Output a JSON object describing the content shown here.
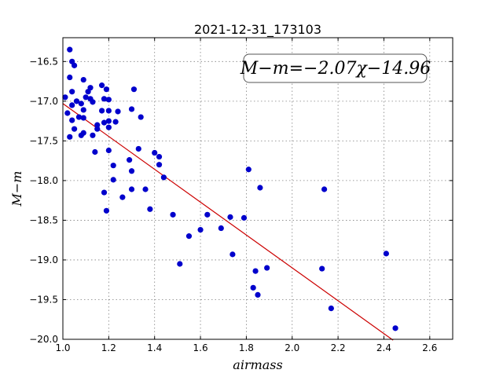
{
  "chart_data": {
    "type": "scatter",
    "title": "2021-12-31_173103",
    "xlabel": "airmass",
    "ylabel": "M−m",
    "xlim": [
      1.0,
      2.7
    ],
    "ylim": [
      -20.0,
      -16.2
    ],
    "y_inverted": true,
    "grid": true,
    "x_ticks": [
      1.0,
      1.2,
      1.4,
      1.6,
      1.8,
      2.0,
      2.2,
      2.4,
      2.6
    ],
    "x_tick_labels": [
      "1.0",
      "1.2",
      "1.4",
      "1.6",
      "1.8",
      "2.0",
      "2.2",
      "2.4",
      "2.6"
    ],
    "y_ticks": [
      -16.5,
      -17.0,
      -17.5,
      -18.0,
      -18.5,
      -19.0,
      -19.5,
      -20.0
    ],
    "y_tick_labels": [
      "−16.5",
      "−17.0",
      "−17.5",
      "−18.0",
      "−18.5",
      "−19.0",
      "−19.5",
      "−20.0"
    ],
    "annotation": "M−m=−2.07χ−14.96",
    "fit": {
      "slope": -2.07,
      "intercept": -14.96,
      "x_range": [
        1.0,
        2.44
      ],
      "color": "#cc0000"
    },
    "points_color": "#0000cc",
    "points": [
      [
        1.01,
        -16.95
      ],
      [
        1.02,
        -17.15
      ],
      [
        1.03,
        -16.35
      ],
      [
        1.03,
        -16.7
      ],
      [
        1.03,
        -17.45
      ],
      [
        1.04,
        -16.5
      ],
      [
        1.04,
        -16.88
      ],
      [
        1.04,
        -17.05
      ],
      [
        1.04,
        -17.24
      ],
      [
        1.05,
        -16.55
      ],
      [
        1.05,
        -17.35
      ],
      [
        1.06,
        -17.0
      ],
      [
        1.07,
        -17.2
      ],
      [
        1.08,
        -17.03
      ],
      [
        1.08,
        -17.43
      ],
      [
        1.09,
        -16.73
      ],
      [
        1.09,
        -17.11
      ],
      [
        1.09,
        -17.21
      ],
      [
        1.09,
        -17.4
      ],
      [
        1.1,
        -16.95
      ],
      [
        1.11,
        -16.88
      ],
      [
        1.12,
        -16.83
      ],
      [
        1.12,
        -16.97
      ],
      [
        1.13,
        -17.01
      ],
      [
        1.13,
        -17.43
      ],
      [
        1.14,
        -17.64
      ],
      [
        1.15,
        -17.3
      ],
      [
        1.15,
        -17.35
      ],
      [
        1.17,
        -16.8
      ],
      [
        1.17,
        -17.12
      ],
      [
        1.18,
        -16.97
      ],
      [
        1.18,
        -17.27
      ],
      [
        1.18,
        -18.15
      ],
      [
        1.19,
        -16.85
      ],
      [
        1.19,
        -18.38
      ],
      [
        1.2,
        -16.98
      ],
      [
        1.2,
        -17.12
      ],
      [
        1.2,
        -17.25
      ],
      [
        1.2,
        -17.33
      ],
      [
        1.2,
        -17.62
      ],
      [
        1.22,
        -17.81
      ],
      [
        1.22,
        -17.99
      ],
      [
        1.23,
        -17.26
      ],
      [
        1.24,
        -17.13
      ],
      [
        1.26,
        -18.21
      ],
      [
        1.29,
        -17.74
      ],
      [
        1.3,
        -17.1
      ],
      [
        1.3,
        -17.88
      ],
      [
        1.3,
        -18.11
      ],
      [
        1.31,
        -16.85
      ],
      [
        1.33,
        -17.6
      ],
      [
        1.34,
        -17.2
      ],
      [
        1.36,
        -18.11
      ],
      [
        1.38,
        -18.36
      ],
      [
        1.4,
        -17.65
      ],
      [
        1.42,
        -17.7
      ],
      [
        1.42,
        -17.8
      ],
      [
        1.44,
        -17.96
      ],
      [
        1.48,
        -18.43
      ],
      [
        1.51,
        -19.05
      ],
      [
        1.55,
        -18.7
      ],
      [
        1.6,
        -18.62
      ],
      [
        1.63,
        -18.43
      ],
      [
        1.69,
        -18.6
      ],
      [
        1.73,
        -18.46
      ],
      [
        1.74,
        -18.93
      ],
      [
        1.79,
        -18.47
      ],
      [
        1.81,
        -17.86
      ],
      [
        1.83,
        -19.35
      ],
      [
        1.84,
        -19.14
      ],
      [
        1.85,
        -19.44
      ],
      [
        1.86,
        -18.09
      ],
      [
        1.89,
        -19.1
      ],
      [
        2.13,
        -19.11
      ],
      [
        2.14,
        -18.11
      ],
      [
        2.17,
        -19.61
      ],
      [
        2.41,
        -18.92
      ],
      [
        2.45,
        -19.86
      ]
    ]
  }
}
